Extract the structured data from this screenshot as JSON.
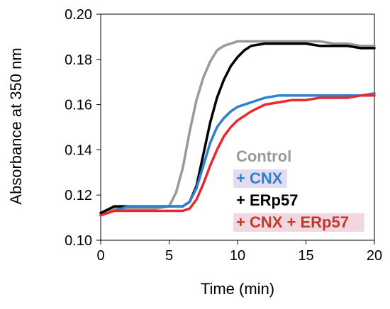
{
  "chart_data": {
    "type": "line",
    "xlabel": "Time (min)",
    "ylabel": "Absorbance at 350 nm",
    "xlim": [
      0,
      20
    ],
    "ylim": [
      0.1,
      0.2
    ],
    "x_ticks": [
      0,
      5,
      10,
      15,
      20
    ],
    "y_ticks": [
      0.1,
      0.12,
      0.14,
      0.16,
      0.18,
      0.2
    ],
    "x_tick_labels": [
      "0",
      "5",
      "10",
      "15",
      "20"
    ],
    "y_tick_labels": [
      "0.10",
      "0.12",
      "0.14",
      "0.16",
      "0.18",
      "0.20"
    ],
    "grid": false,
    "legend_position": "bottom-right",
    "series": [
      {
        "name": "Control",
        "color": "#999999",
        "x": [
          0,
          1,
          2,
          3,
          4,
          5,
          5.5,
          6,
          6.5,
          7,
          7.5,
          8,
          8.5,
          9,
          9.5,
          10,
          11,
          12,
          13,
          14,
          15,
          16,
          17,
          18,
          19,
          20
        ],
        "y": [
          0.111,
          0.114,
          0.114,
          0.114,
          0.114,
          0.115,
          0.121,
          0.132,
          0.148,
          0.162,
          0.172,
          0.179,
          0.184,
          0.186,
          0.187,
          0.188,
          0.188,
          0.188,
          0.188,
          0.188,
          0.188,
          0.188,
          0.187,
          0.187,
          0.186,
          0.186
        ]
      },
      {
        "name": "+ CNX",
        "color": "#2f7fcf",
        "x": [
          0,
          1,
          2,
          3,
          4,
          5,
          6,
          6.5,
          7,
          7.5,
          8,
          8.5,
          9,
          9.5,
          10,
          11,
          12,
          13,
          14,
          15,
          16,
          17,
          18,
          19,
          20
        ],
        "y": [
          0.111,
          0.113,
          0.115,
          0.115,
          0.115,
          0.115,
          0.115,
          0.117,
          0.123,
          0.133,
          0.143,
          0.15,
          0.154,
          0.157,
          0.159,
          0.161,
          0.163,
          0.164,
          0.164,
          0.164,
          0.164,
          0.164,
          0.164,
          0.164,
          0.165
        ]
      },
      {
        "name": "+ ERp57",
        "color": "#000000",
        "x": [
          0,
          1,
          2,
          3,
          4,
          5,
          6,
          6.5,
          7,
          7.5,
          8,
          8.5,
          9,
          9.5,
          10,
          10.5,
          11,
          12,
          13,
          14,
          15,
          16,
          17,
          18,
          19,
          20
        ],
        "y": [
          0.112,
          0.115,
          0.115,
          0.115,
          0.115,
          0.115,
          0.115,
          0.117,
          0.124,
          0.138,
          0.152,
          0.163,
          0.171,
          0.177,
          0.181,
          0.184,
          0.186,
          0.187,
          0.187,
          0.187,
          0.187,
          0.186,
          0.186,
          0.186,
          0.185,
          0.185
        ]
      },
      {
        "name": "+ CNX + ERp57",
        "color": "#e8292c",
        "x": [
          0,
          1,
          2,
          3,
          4,
          5,
          6,
          6.5,
          7,
          7.5,
          8,
          8.5,
          9,
          9.5,
          10,
          11,
          12,
          13,
          14,
          15,
          16,
          17,
          18,
          19,
          20
        ],
        "y": [
          0.111,
          0.113,
          0.113,
          0.113,
          0.113,
          0.113,
          0.113,
          0.114,
          0.118,
          0.125,
          0.133,
          0.14,
          0.146,
          0.15,
          0.153,
          0.157,
          0.16,
          0.161,
          0.162,
          0.162,
          0.163,
          0.163,
          0.163,
          0.164,
          0.164
        ]
      }
    ],
    "legend": [
      {
        "label": "Control",
        "color": "#999999",
        "highlight": ""
      },
      {
        "label": "+ CNX",
        "color": "#2f7fcf",
        "highlight": "#e3dcf0"
      },
      {
        "label": "+ ERp57",
        "color": "#000000",
        "highlight": ""
      },
      {
        "label": "+ CNX + ERp57",
        "color": "#c0392b",
        "highlight": "#f3d7e0"
      }
    ]
  }
}
